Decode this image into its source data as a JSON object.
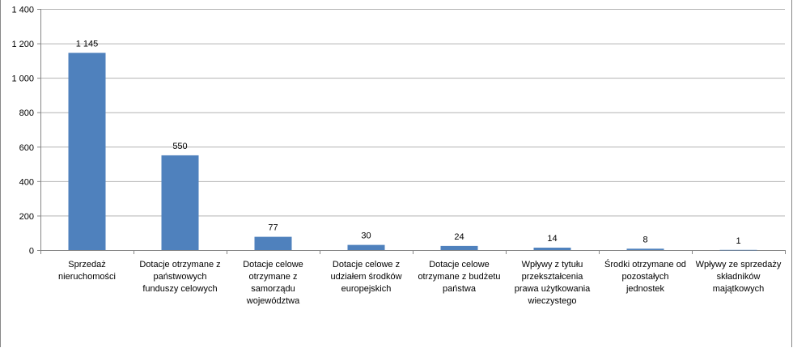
{
  "chart_data": {
    "type": "bar",
    "title": "",
    "xlabel": "",
    "ylabel": "",
    "ylim": [
      0,
      1400
    ],
    "yticks": [
      0,
      200,
      400,
      600,
      800,
      1000,
      1200,
      1400
    ],
    "ytick_labels": [
      "0",
      "200",
      "400",
      "600",
      "800",
      "1 000",
      "1 200",
      "1 400"
    ],
    "grid": true,
    "legend": "none",
    "bar_color": "#4F81BD",
    "categories": [
      [
        "Sprzedaż",
        "nieruchomości"
      ],
      [
        "Dotacje otrzymane z",
        "państwowych",
        "funduszy celowych"
      ],
      [
        "Dotacje celowe",
        "otrzymane z",
        "samorządu",
        "województwa"
      ],
      [
        "Dotacje celowe z",
        "udziałem środków",
        "europejskich"
      ],
      [
        "Dotacje celowe",
        "otrzymane z budżetu",
        "państwa"
      ],
      [
        "Wpływy z tytułu",
        "przekształcenia",
        "prawa użytkowania",
        "wieczystego"
      ],
      [
        "Środki otrzymane od",
        "pozostałych",
        "jednostek"
      ],
      [
        "Wpływy ze sprzedaży",
        "składników",
        "majątkowych"
      ]
    ],
    "values": [
      1145,
      550,
      77,
      30,
      24,
      14,
      8,
      1
    ],
    "value_labels": [
      "1 145",
      "550",
      "77",
      "30",
      "24",
      "14",
      "8",
      "1"
    ]
  }
}
